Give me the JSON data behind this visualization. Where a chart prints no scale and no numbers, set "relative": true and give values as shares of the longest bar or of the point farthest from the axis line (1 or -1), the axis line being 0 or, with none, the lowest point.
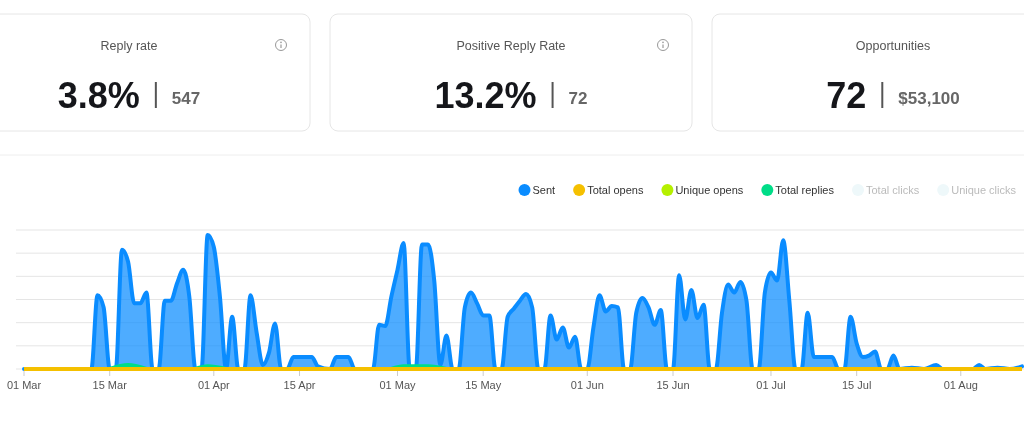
{
  "chart_data": [
    {
      "type": "other",
      "title": "Reply rate",
      "annotations": [
        "3.8%",
        "547"
      ]
    },
    {
      "type": "other",
      "title": "Positive Reply Rate",
      "annotations": [
        "13.2%",
        "72"
      ]
    },
    {
      "type": "other",
      "title": "Opportunities",
      "annotations": [
        "72",
        "$53,100"
      ]
    },
    {
      "type": "area",
      "relative": true,
      "grid": true,
      "legend": "top right",
      "xlim": [
        "--03-01",
        "--08-11"
      ],
      "xticks": [
        {
          "value": "--03-01",
          "label": "01 Mar"
        },
        {
          "value": "--03-15",
          "label": "15 Mar"
        },
        {
          "value": "--04-01",
          "label": "01 Apr"
        },
        {
          "value": "--04-15",
          "label": "15 Apr"
        },
        {
          "value": "--05-01",
          "label": "01 May"
        },
        {
          "value": "--05-15",
          "label": "15 May"
        },
        {
          "value": "--06-01",
          "label": "01 Jun"
        },
        {
          "value": "--06-15",
          "label": "15 Jun"
        },
        {
          "value": "--07-01",
          "label": "01 Jul"
        },
        {
          "value": "--07-15",
          "label": "15 Jul"
        },
        {
          "value": "--08-01",
          "label": "01 Aug"
        }
      ],
      "series": [
        {
          "name": "Sent",
          "color": "#0a8cff",
          "x": [
            "--03-01",
            "--03-12",
            "--03-13",
            "--03-14",
            "--03-15",
            "--03-16",
            "--03-17",
            "--03-18",
            "--03-19",
            "--03-20",
            "--03-21",
            "--03-22",
            "--03-23",
            "--03-24",
            "--03-25",
            "--03-26",
            "--03-27",
            "--03-28",
            "--03-29",
            "--03-30",
            "--03-31",
            "--04-01",
            "--04-02",
            "--04-03",
            "--04-04",
            "--04-05",
            "--04-06",
            "--04-07",
            "--04-08",
            "--04-09",
            "--04-10",
            "--04-11",
            "--04-12",
            "--04-13",
            "--04-14",
            "--04-17",
            "--04-18",
            "--04-20",
            "--04-21",
            "--04-23",
            "--04-24",
            "--04-27",
            "--04-28",
            "--04-29",
            "--04-30",
            "--05-01",
            "--05-02",
            "--05-03",
            "--05-04",
            "--05-05",
            "--05-06",
            "--05-07",
            "--05-08",
            "--05-09",
            "--05-10",
            "--05-11",
            "--05-12",
            "--05-13",
            "--05-14",
            "--05-15",
            "--05-16",
            "--05-17",
            "--05-18",
            "--05-19",
            "--05-20",
            "--05-21",
            "--05-22",
            "--05-23",
            "--05-24",
            "--05-25",
            "--05-26",
            "--05-27",
            "--05-28",
            "--05-29",
            "--05-30",
            "--05-31",
            "--06-01",
            "--06-02",
            "--06-03",
            "--06-04",
            "--06-05",
            "--06-06",
            "--06-07",
            "--06-08",
            "--06-09",
            "--06-10",
            "--06-11",
            "--06-12",
            "--06-13",
            "--06-14",
            "--06-15",
            "--06-16",
            "--06-17",
            "--06-18",
            "--06-19",
            "--06-20",
            "--06-21",
            "--06-22",
            "--06-23",
            "--06-24",
            "--06-25",
            "--06-26",
            "--06-27",
            "--06-28",
            "--06-29",
            "--06-30",
            "--07-01",
            "--07-02",
            "--07-03",
            "--07-04",
            "--07-05",
            "--07-06",
            "--07-07",
            "--07-08",
            "--07-11",
            "--07-12",
            "--07-13",
            "--07-14",
            "--07-15",
            "--07-16",
            "--07-17",
            "--07-18",
            "--07-19",
            "--07-20",
            "--07-21",
            "--07-22",
            "--07-24",
            "--07-26",
            "--07-28",
            "--07-29",
            "--08-03",
            "--08-04",
            "--08-05",
            "--08-07",
            "--08-09",
            "--08-11"
          ],
          "values": [
            0,
            0,
            0.55,
            0.46,
            0,
            0,
            0.89,
            0.8,
            0.49,
            0.49,
            0.57,
            0,
            0,
            0.51,
            0.51,
            0.64,
            0.74,
            0.54,
            0,
            0,
            1,
            0.91,
            0.54,
            0,
            0.39,
            0,
            0,
            0.55,
            0.27,
            0.03,
            0.12,
            0.34,
            0,
            0,
            0.09,
            0.09,
            0.02,
            0,
            0.09,
            0.09,
            0,
            0,
            0.33,
            0.32,
            0.54,
            0.74,
            0.94,
            0,
            0,
            0.93,
            0.93,
            0.66,
            0.03,
            0.25,
            0,
            0,
            0.46,
            0.57,
            0.49,
            0.4,
            0.4,
            0,
            0,
            0.39,
            0.45,
            0.51,
            0.56,
            0.46,
            0,
            0,
            0.4,
            0.22,
            0.31,
            0.16,
            0.24,
            0,
            0,
            0.31,
            0.55,
            0.43,
            0.47,
            0.46,
            0,
            0,
            0.42,
            0.53,
            0.46,
            0.33,
            0.44,
            0,
            0,
            0.7,
            0.37,
            0.59,
            0.38,
            0.48,
            0,
            0,
            0.42,
            0.63,
            0.57,
            0.65,
            0.51,
            0,
            0,
            0.57,
            0.72,
            0.66,
            0.96,
            0.51,
            0,
            0,
            0.42,
            0.09,
            0.09,
            0,
            0,
            0.39,
            0.19,
            0.09,
            0.1,
            0.13,
            0,
            0,
            0.1,
            0,
            0.01,
            0,
            0.03,
            0,
            0,
            0.03,
            0,
            0.01,
            0,
            0.02
          ]
        },
        {
          "name": "Total opens",
          "type": "line",
          "color": "#f5c000",
          "x": [
            "--03-01",
            "--08-11"
          ],
          "values": [
            0,
            0
          ]
        },
        {
          "name": "Unique opens",
          "color": "#b5f000"
        },
        {
          "name": "Total replies",
          "color": "#00dd88",
          "x": [
            "--03-15",
            "--03-18",
            "--03-21",
            "--03-22",
            "--03-29",
            "--03-31",
            "--04-03",
            "--04-04",
            "--04-30",
            "--05-02",
            "--05-06",
            "--05-09"
          ],
          "values": [
            0,
            0.03,
            0,
            null,
            0,
            0.02,
            0,
            null,
            0,
            0.02,
            0.02,
            0
          ]
        },
        {
          "name": "Total clicks",
          "color": "#eef8fa"
        },
        {
          "name": "Unique clicks",
          "color": "#eef8fa"
        }
      ]
    }
  ]
}
